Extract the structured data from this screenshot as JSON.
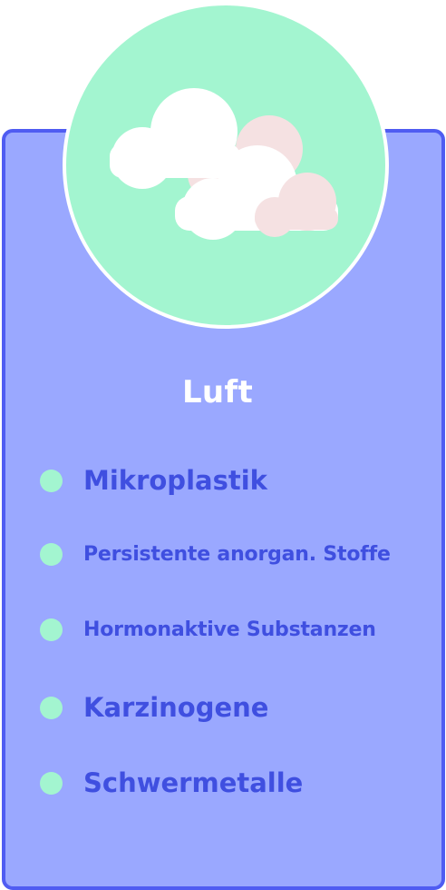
{
  "card": {
    "title": "Luft",
    "icon": "clouds-icon",
    "items": [
      {
        "label": "Mikroplastik"
      },
      {
        "label": "Persistente anorgan. Stoffe"
      },
      {
        "label": "Hormonaktive Substanzen"
      },
      {
        "label": "Karzinogene"
      },
      {
        "label": "Schwermetalle"
      }
    ]
  },
  "colors": {
    "card_fill": "#9aa8ff",
    "card_border": "#4f5cf2",
    "badge_fill": "#a3f5d0",
    "text_primary": "#3f4fe0",
    "title_text": "#ffffff",
    "cloud_white": "#ffffff",
    "cloud_pink": "#f5e1e2"
  }
}
